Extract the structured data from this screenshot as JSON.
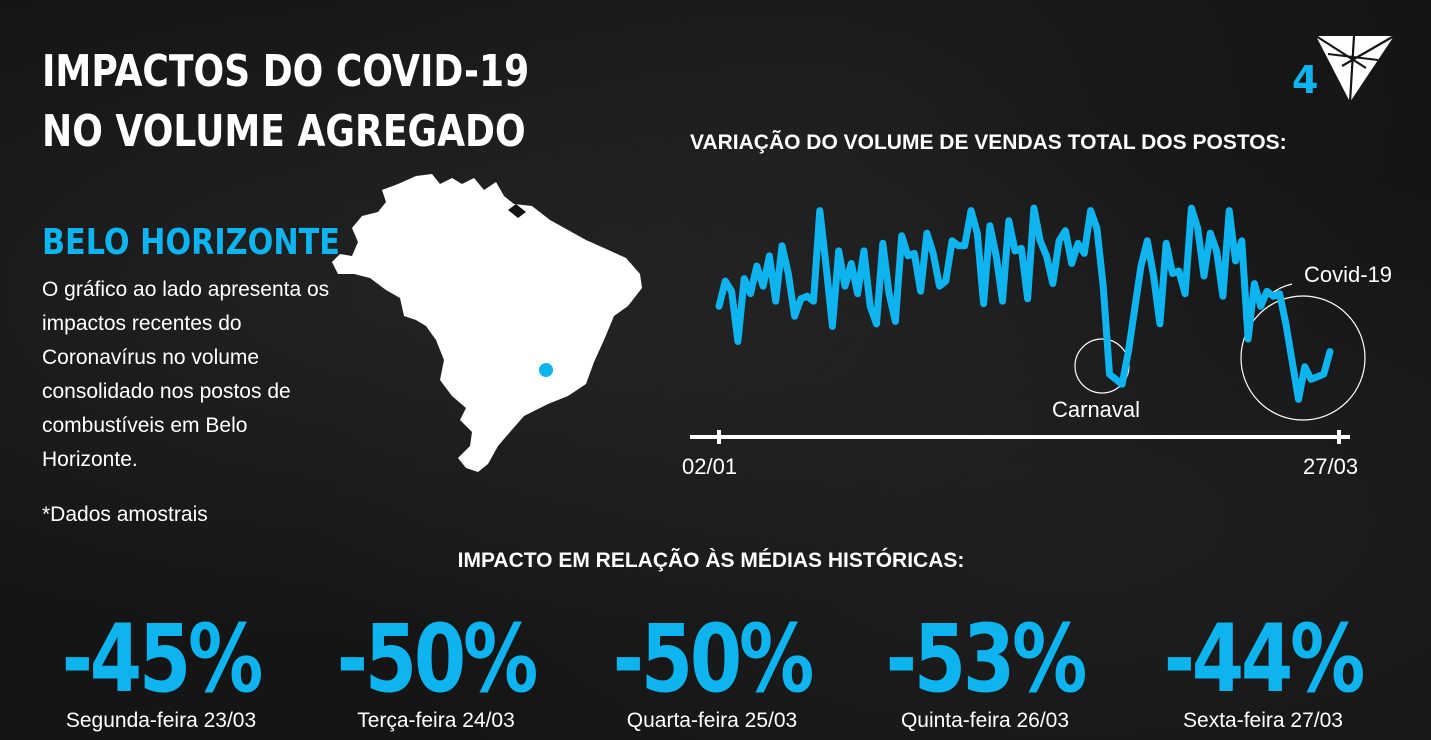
{
  "header": {
    "title": "IMPACTOS DO COVID-19 NO VOLUME AGREGADO",
    "page_number": "4"
  },
  "sidebar": {
    "city": "BELO HORIZONTE",
    "description": "O gráfico ao lado apresenta os impactos recentes do Coronavírus no volume consolidado nos postos de combustíveis em Belo Horizonte.",
    "footnote": "*Dados amostrais"
  },
  "colors": {
    "accent": "#0db4ef",
    "text": "#ffffff",
    "background": "#151515"
  },
  "icons": {
    "logo": "triangle-logo-icon",
    "map": "brazil-map-icon",
    "location": "location-dot-icon"
  },
  "chart_data": {
    "type": "line",
    "title": "VARIAÇÃO DO VOLUME DE VENDAS TOTAL DOS POSTOS:",
    "x_start_label": "02/01",
    "x_end_label": "27/03",
    "y_axis_visible": false,
    "grid": false,
    "series": [
      {
        "values": [
          62,
          72,
          68,
          48,
          73,
          67,
          78,
          70,
          82,
          64,
          86,
          75,
          58,
          65,
          66,
          64,
          100,
          78,
          54,
          84,
          70,
          79,
          67,
          84,
          62,
          55,
          87,
          67,
          56,
          90,
          82,
          83,
          68,
          91,
          83,
          70,
          72,
          88,
          86,
          86,
          100,
          91,
          63,
          94,
          82,
          64,
          96,
          84,
          85,
          65,
          101,
          88,
          82,
          71,
          88,
          92,
          79,
          87,
          83,
          100,
          93,
          70,
          35,
          33,
          31,
          44,
          61,
          78,
          88,
          74,
          55,
          87,
          75,
          76,
          67,
          101,
          93,
          74,
          91,
          84,
          66,
          100,
          80,
          88,
          49,
          71,
          62,
          68,
          66,
          67,
          55,
          40,
          25,
          38,
          33,
          34,
          35,
          44
        ]
      }
    ],
    "annotations": [
      "Carnaval",
      "Covid-19"
    ]
  },
  "impact": {
    "title": "IMPACTO EM RELAÇÃO ÀS MÉDIAS HISTÓRICAS:",
    "items": [
      {
        "value": "-45%",
        "label": "Segunda-feira 23/03"
      },
      {
        "value": "-50%",
        "label": "Terça-feira 24/03"
      },
      {
        "value": "-50%",
        "label": "Quarta-feira 25/03"
      },
      {
        "value": "-53%",
        "label": "Quinta-feira 26/03"
      },
      {
        "value": "-44%",
        "label": "Sexta-feira 27/03"
      }
    ]
  }
}
